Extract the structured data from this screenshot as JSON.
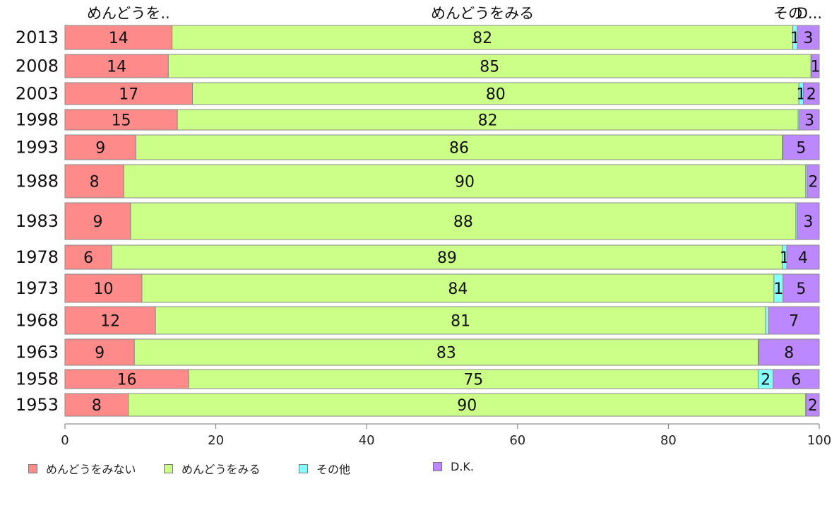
{
  "chart_data": {
    "type": "bar",
    "orientation": "horizontal",
    "stacked": true,
    "title": "",
    "xlabel": "",
    "ylabel": "",
    "xlim": [
      0,
      100
    ],
    "xticks": [
      0,
      20,
      40,
      60,
      80,
      100
    ],
    "categories": [
      "2013",
      "2008",
      "2003",
      "1998",
      "1993",
      "1988",
      "1983",
      "1978",
      "1973",
      "1968",
      "1963",
      "1958",
      "1953"
    ],
    "series": [
      {
        "name": "めんどうをみない",
        "color": "#ff8a8a",
        "values": [
          14.2,
          13.7,
          16.9,
          14.9,
          9.4,
          7.8,
          8.7,
          6.2,
          10.2,
          12,
          9.2,
          16.4,
          8.4
        ],
        "labels": [
          "14",
          "14",
          "17",
          "15",
          "9",
          "8",
          "9",
          "6",
          "10",
          "12",
          "9",
          "16",
          "8"
        ]
      },
      {
        "name": "めんどうをみる",
        "color": "#ccff88",
        "values": [
          82.3,
          85.2,
          80.4,
          82.3,
          85.7,
          90.4,
          88.2,
          88.9,
          83.8,
          80.9,
          82.7,
          75.5,
          89.8
        ],
        "labels": [
          "82",
          "85",
          "80",
          "82",
          "86",
          "90",
          "88",
          "89",
          "84",
          "81",
          "83",
          "75",
          "90"
        ]
      },
      {
        "name": "その他",
        "color": "#88ffff",
        "values": [
          0.6,
          0.1,
          0.6,
          0.2,
          0.1,
          0.2,
          0.2,
          0.6,
          1.2,
          0.4,
          0.1,
          2.0,
          0.1
        ],
        "labels": [
          "1",
          "",
          "1",
          "",
          "",
          "",
          "",
          "1",
          "1",
          "",
          "",
          "2",
          ""
        ]
      },
      {
        "name": "D.K.",
        "color": "#bb88ff",
        "values": [
          2.9,
          1.0,
          2.1,
          2.6,
          4.8,
          1.6,
          2.9,
          4.3,
          4.8,
          6.7,
          8.0,
          6.1,
          1.7
        ],
        "labels": [
          "3",
          "1",
          "2",
          "3",
          "5",
          "2",
          "3",
          "4",
          "5",
          "7",
          "8",
          "6",
          "2"
        ]
      }
    ],
    "top_labels": [
      "めんどうを..",
      "めんどうをみる",
      "その",
      "D..."
    ],
    "legend_position": "bottom",
    "grid": false
  }
}
